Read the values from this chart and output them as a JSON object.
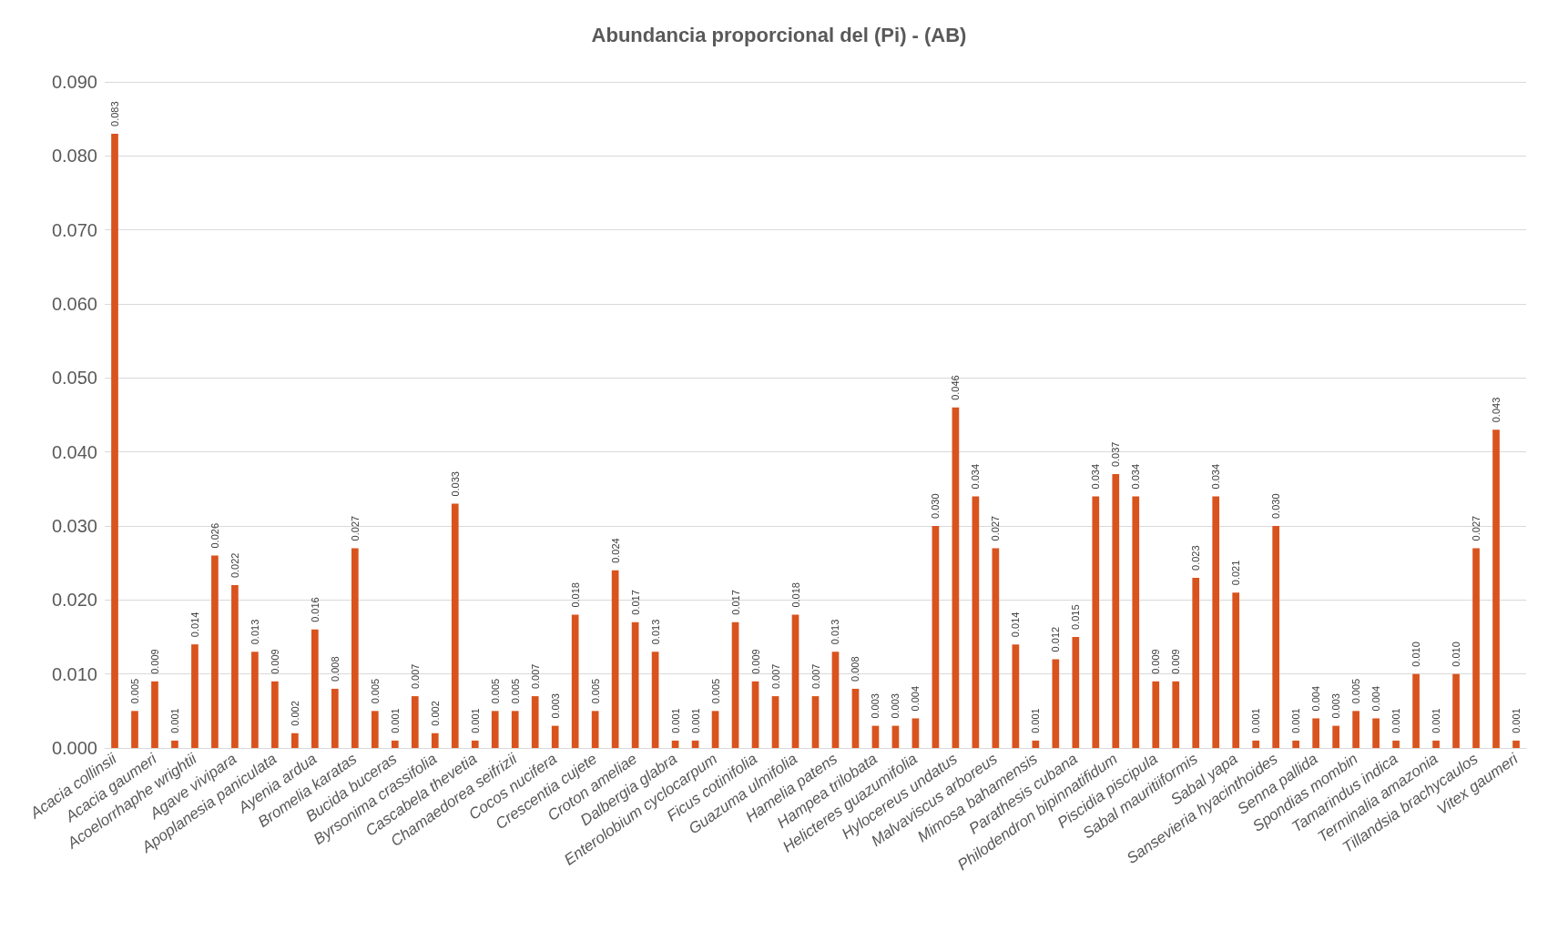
{
  "chart_data": {
    "type": "bar",
    "title": "Abundancia proporcional del (Pi) - (AB)",
    "categories": [
      "Acacia collinsii",
      null,
      "Acacia gaumeri",
      null,
      "Acoelorrhaphe wrightii",
      null,
      "Agave vivipara",
      null,
      "Apoplanesia paniculata",
      null,
      "Ayenia ardua",
      null,
      "Bromelia karatas",
      null,
      "Bucida buceras",
      null,
      "Byrsonima crassifolia",
      null,
      "Cascabela thevetia",
      null,
      "Chamaedorea seifrizii",
      null,
      "Cocos nucifera",
      null,
      "Crescentia cujete",
      null,
      "Croton ameliae",
      null,
      "Dalbergia glabra",
      null,
      "Enterolobium cyclocarpum",
      null,
      "Ficus cotinifolia",
      null,
      "Guazuma ulmifolia",
      null,
      "Hamelia patens",
      null,
      "Hampea trilobata",
      null,
      "Helicteres guazumifolia",
      null,
      "Hylocereus undatus",
      null,
      "Malvaviscus arboreus",
      null,
      "Mimosa bahamensis",
      null,
      "Parathesis cubana",
      null,
      "Philodendron bipinnatifidum",
      null,
      "Piscidia piscipula",
      null,
      "Sabal mauritiiformis",
      null,
      "Sabal yapa",
      null,
      "Sansevieria hyacinthoides",
      null,
      "Senna pallida",
      null,
      "Spondias mombin",
      null,
      "Tamarindus indica",
      null,
      "Terminalia amazonia",
      null,
      "Tillandsia brachycaulos",
      null,
      "Vitex gaumeri"
    ],
    "values": [
      0.083,
      0.005,
      0.009,
      0.001,
      0.014,
      0.026,
      0.022,
      0.013,
      0.009,
      0.002,
      0.016,
      0.008,
      0.027,
      0.005,
      0.001,
      0.007,
      0.002,
      0.033,
      0.001,
      0.005,
      0.005,
      0.007,
      0.003,
      0.018,
      0.005,
      0.024,
      0.017,
      0.013,
      0.001,
      0.001,
      0.005,
      0.017,
      0.009,
      0.007,
      0.018,
      0.007,
      0.013,
      0.008,
      0.003,
      0.003,
      0.004,
      0.03,
      0.046,
      0.034,
      0.027,
      0.014,
      0.001,
      0.012,
      0.015,
      0.034,
      0.037,
      0.034,
      0.009,
      0.009,
      0.023,
      0.034,
      0.021,
      0.001,
      0.03,
      0.001,
      0.004,
      0.003,
      0.005,
      0.004,
      0.001,
      0.01,
      0.001,
      0.01,
      0.027,
      0.043,
      0.001
    ],
    "value_labels": [
      "0.083",
      "0.005",
      "0.009",
      "0.001",
      "0.014",
      "0.026",
      "0.022",
      "0.013",
      "0.009",
      "0.002",
      "0.016",
      "0.008",
      "0.027",
      "0.005",
      "0.001",
      "0.007",
      "0.002",
      "0.033",
      "0.001",
      "0.005",
      "0.005",
      "0.007",
      "0.003",
      "0.018",
      "0.005",
      "0.024",
      "0.017",
      "0.013",
      "0.001",
      "0.001",
      "0.005",
      "0.017",
      "0.009",
      "0.007",
      "0.018",
      "0.007",
      "0.013",
      "0.008",
      "0.003",
      "0.003",
      "0.004",
      "0.030",
      "0.046",
      "0.034",
      "0.027",
      "0.014",
      "0.001",
      "0.012",
      "0.015",
      "0.034",
      "0.037",
      "0.034",
      "0.009",
      "0.009",
      "0.023",
      "0.034",
      "0.021",
      "0.001",
      "0.030",
      "0.001",
      "0.004",
      "0.003",
      "0.005",
      "0.004",
      "0.001",
      "0.010",
      "0.001",
      "0.010",
      "0.027",
      "0.043",
      "0.001"
    ],
    "color": "#d9531e",
    "ylim": [
      0,
      0.09
    ],
    "yticks": [
      {
        "value": 0,
        "label": "0.000"
      },
      {
        "value": 0.01,
        "label": "0.010"
      },
      {
        "value": 0.02,
        "label": "0.020"
      },
      {
        "value": 0.03,
        "label": "0.030"
      },
      {
        "value": 0.04,
        "label": "0.040"
      },
      {
        "value": 0.05,
        "label": "0.050"
      },
      {
        "value": 0.06,
        "label": "0.060"
      },
      {
        "value": 0.07,
        "label": "0.070"
      },
      {
        "value": 0.08,
        "label": "0.080"
      },
      {
        "value": 0.09,
        "label": "0.090"
      }
    ],
    "grid": "y"
  }
}
